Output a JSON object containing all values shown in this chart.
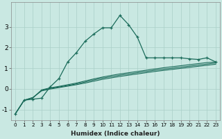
{
  "xlabel": "Humidex (Indice chaleur)",
  "ylabel": "",
  "background_color": "#c9e8e2",
  "grid_color": "#aacfc8",
  "line_color": "#1a6b5a",
  "x_values": [
    0,
    1,
    2,
    3,
    4,
    5,
    6,
    7,
    8,
    9,
    10,
    11,
    12,
    13,
    14,
    15,
    16,
    17,
    18,
    19,
    20,
    21,
    22,
    23
  ],
  "series1": [
    -1.2,
    -0.55,
    -0.5,
    -0.45,
    0.1,
    0.5,
    1.3,
    1.75,
    2.3,
    2.65,
    2.95,
    2.95,
    3.55,
    3.1,
    2.5,
    1.5,
    1.5,
    1.5,
    1.5,
    1.5,
    1.45,
    1.42,
    1.5,
    1.3
  ],
  "series2": [
    -1.2,
    -0.55,
    -0.45,
    -0.05,
    0.05,
    0.12,
    0.2,
    0.28,
    0.38,
    0.48,
    0.57,
    0.65,
    0.72,
    0.78,
    0.84,
    0.9,
    0.96,
    1.02,
    1.07,
    1.12,
    1.17,
    1.22,
    1.27,
    1.3
  ],
  "series3": [
    -1.2,
    -0.55,
    -0.42,
    -0.08,
    0.02,
    0.09,
    0.16,
    0.24,
    0.33,
    0.43,
    0.52,
    0.59,
    0.66,
    0.72,
    0.78,
    0.84,
    0.9,
    0.95,
    1.0,
    1.05,
    1.1,
    1.15,
    1.2,
    1.25
  ],
  "series4": [
    -1.2,
    -0.55,
    -0.42,
    -0.1,
    -0.01,
    0.06,
    0.13,
    0.2,
    0.28,
    0.37,
    0.46,
    0.53,
    0.6,
    0.66,
    0.72,
    0.78,
    0.84,
    0.89,
    0.94,
    0.99,
    1.04,
    1.09,
    1.14,
    1.19
  ],
  "ylim": [
    -1.5,
    4.2
  ],
  "xlim": [
    -0.5,
    23.5
  ],
  "yticks": [
    -1,
    0,
    1,
    2,
    3
  ],
  "xticks": [
    0,
    1,
    2,
    3,
    4,
    5,
    6,
    7,
    8,
    9,
    10,
    11,
    12,
    13,
    14,
    15,
    16,
    17,
    18,
    19,
    20,
    21,
    22,
    23
  ],
  "xlabel_fontsize": 6.5,
  "ytick_fontsize": 6.5,
  "xtick_fontsize": 5.2
}
